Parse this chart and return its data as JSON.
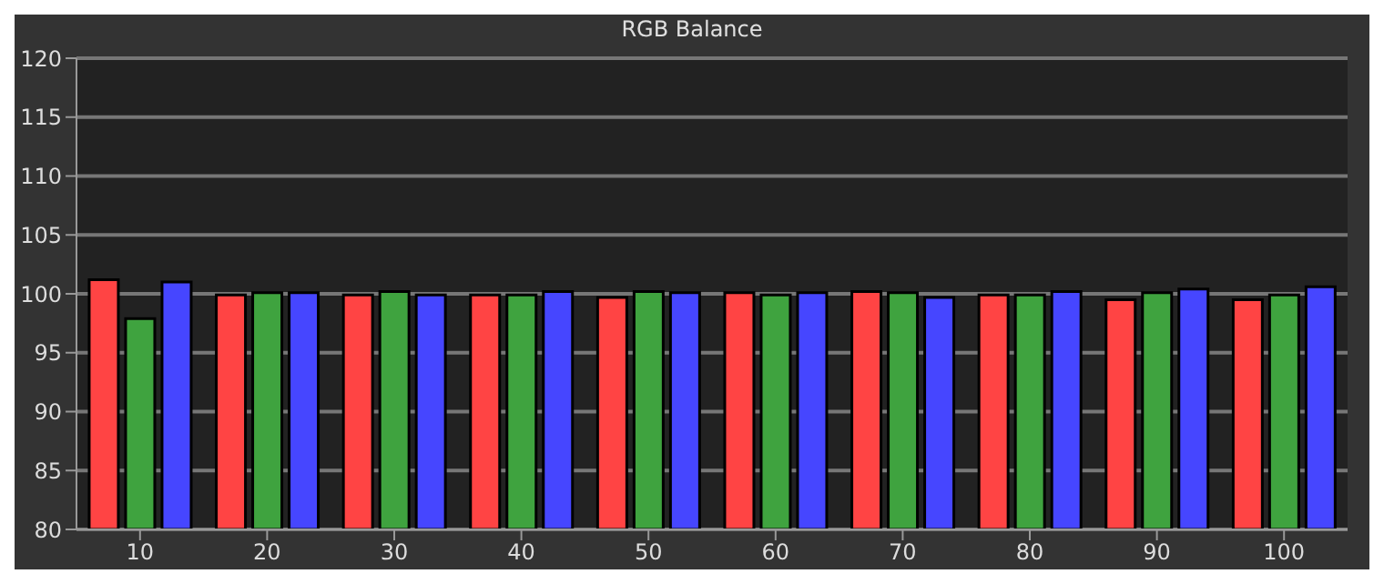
{
  "chart_data": {
    "type": "bar",
    "title": "RGB Balance",
    "categories": [
      "10",
      "20",
      "30",
      "40",
      "50",
      "60",
      "70",
      "80",
      "90",
      "100"
    ],
    "series": [
      {
        "color": "#ff4444",
        "values": [
          101.2,
          99.9,
          99.9,
          99.9,
          99.7,
          100.1,
          100.2,
          99.9,
          99.5,
          99.5
        ]
      },
      {
        "color": "#3fa33f",
        "values": [
          97.9,
          100.1,
          100.2,
          99.9,
          100.2,
          99.9,
          100.1,
          99.9,
          100.1,
          99.9
        ]
      },
      {
        "color": "#4646ff",
        "values": [
          101.0,
          100.1,
          99.9,
          100.2,
          100.1,
          100.1,
          99.7,
          100.2,
          100.4,
          100.6
        ]
      }
    ],
    "ylim": [
      80,
      120
    ],
    "yticks": [
      80,
      85,
      90,
      95,
      100,
      105,
      110,
      115,
      120
    ],
    "grid": "y",
    "legend": false
  }
}
